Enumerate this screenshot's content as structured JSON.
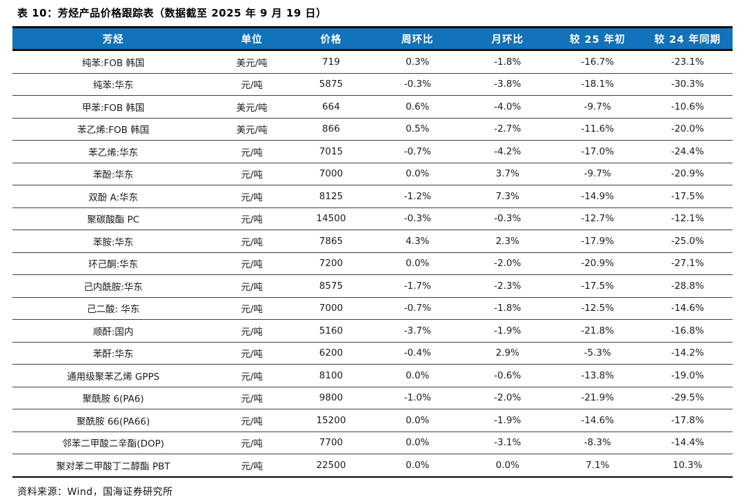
{
  "title": "表 10：芳烃产品价格跟踪表（数据截至 2025 年 9 月 19 日）",
  "source_note": "资料来源：Wind，国海证券研究所",
  "colors": {
    "header_bg": "#1272BA",
    "header_text": "#FFFFFF"
  },
  "chart_data": {
    "type": "table",
    "title": "芳烃产品价格跟踪表（数据截至 2025 年 9 月 19 日）",
    "columns": [
      "芳烃",
      "单位",
      "价格",
      "周环比",
      "月环比",
      "较 25 年初",
      "较 24 年同期"
    ],
    "rows": [
      [
        "纯苯:FOB 韩国",
        "美元/吨",
        "719",
        "0.3%",
        "-1.8%",
        "-16.7%",
        "-23.1%"
      ],
      [
        "纯苯:华东",
        "元/吨",
        "5875",
        "-0.3%",
        "-3.8%",
        "-18.1%",
        "-30.3%"
      ],
      [
        "甲苯:FOB 韩国",
        "美元/吨",
        "664",
        "0.6%",
        "-4.0%",
        "-9.7%",
        "-10.6%"
      ],
      [
        "苯乙烯:FOB 韩国",
        "美元/吨",
        "866",
        "0.5%",
        "-2.7%",
        "-11.6%",
        "-20.0%"
      ],
      [
        "苯乙烯:华东",
        "元/吨",
        "7015",
        "-0.7%",
        "-4.2%",
        "-17.0%",
        "-24.4%"
      ],
      [
        "苯酚:华东",
        "元/吨",
        "7000",
        "0.0%",
        "3.7%",
        "-9.7%",
        "-20.9%"
      ],
      [
        "双酚 A:华东",
        "元/吨",
        "8125",
        "-1.2%",
        "7.3%",
        "-14.9%",
        "-17.5%"
      ],
      [
        "聚碳酸酯 PC",
        "元/吨",
        "14500",
        "-0.3%",
        "-0.3%",
        "-12.7%",
        "-12.1%"
      ],
      [
        "苯胺:华东",
        "元/吨",
        "7865",
        "4.3%",
        "2.3%",
        "-17.9%",
        "-25.0%"
      ],
      [
        "环己酮:华东",
        "元/吨",
        "7200",
        "0.0%",
        "-2.0%",
        "-20.9%",
        "-27.1%"
      ],
      [
        "己内酰胺:华东",
        "元/吨",
        "8575",
        "-1.7%",
        "-2.3%",
        "-17.5%",
        "-28.8%"
      ],
      [
        "己二酸: 华东",
        "元/吨",
        "7000",
        "-0.7%",
        "-1.8%",
        "-12.5%",
        "-14.6%"
      ],
      [
        "顺酐:国内",
        "元/吨",
        "5160",
        "-3.7%",
        "-1.9%",
        "-21.8%",
        "-16.8%"
      ],
      [
        "苯酐:华东",
        "元/吨",
        "6200",
        "-0.4%",
        "2.9%",
        "-5.3%",
        "-14.2%"
      ],
      [
        "通用级聚苯乙烯 GPPS",
        "元/吨",
        "8100",
        "0.0%",
        "-0.6%",
        "-13.8%",
        "-19.0%"
      ],
      [
        "聚酰胺 6(PA6)",
        "元/吨",
        "9800",
        "-1.0%",
        "-2.0%",
        "-21.9%",
        "-29.5%"
      ],
      [
        "聚酰胺 66(PA66)",
        "元/吨",
        "15200",
        "0.0%",
        "-1.9%",
        "-14.6%",
        "-17.8%"
      ],
      [
        "邻苯二甲酸二辛酯(DOP)",
        "元/吨",
        "7700",
        "0.0%",
        "-3.1%",
        "-8.3%",
        "-14.4%"
      ],
      [
        "聚对苯二甲酸丁二醇酯 PBT",
        "元/吨",
        "22500",
        "0.0%",
        "0.0%",
        "7.1%",
        "10.3%"
      ]
    ]
  }
}
